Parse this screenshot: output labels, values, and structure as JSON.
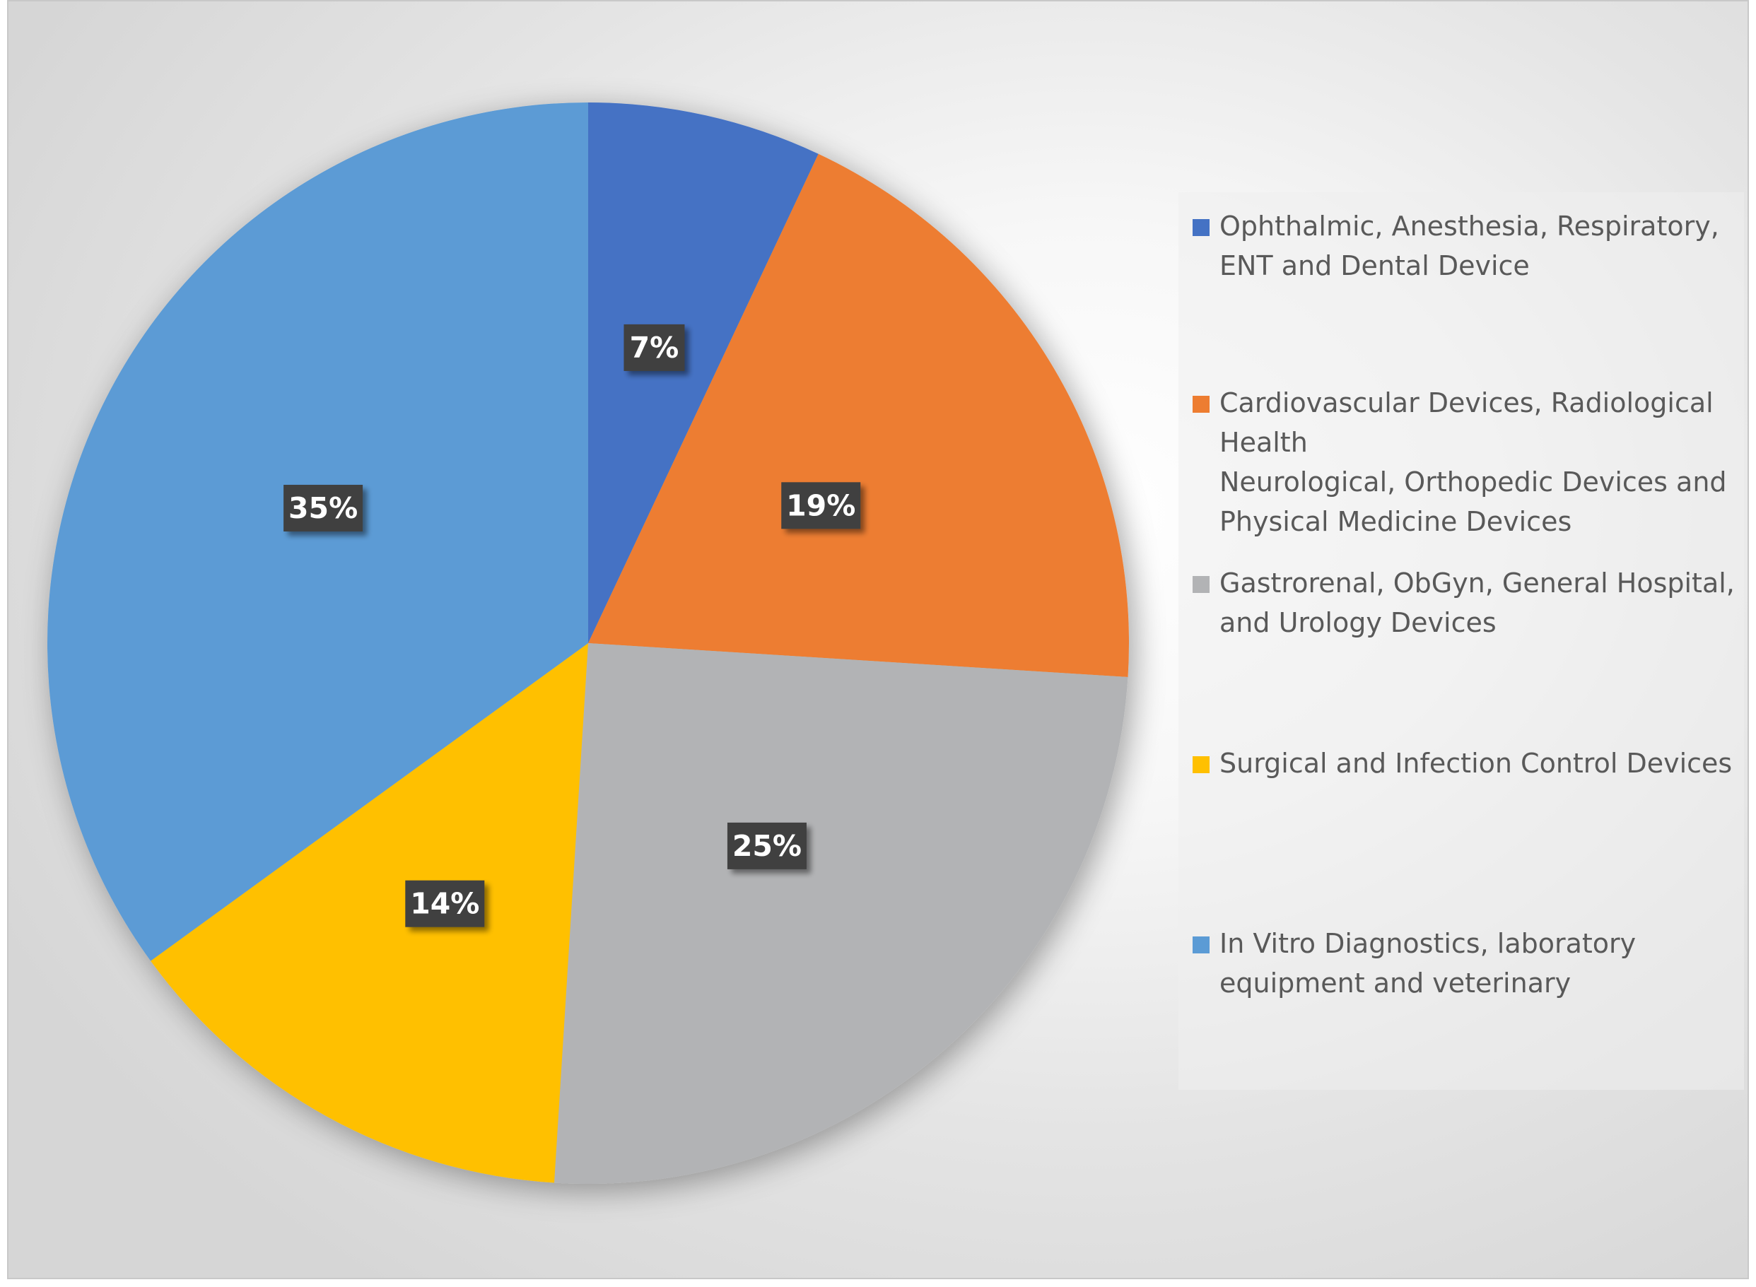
{
  "chart_data": {
    "type": "pie",
    "title": "",
    "slices": [
      {
        "label": "Ophthalmic, Anesthesia, Respiratory, ENT and Dental Device",
        "value": 7,
        "display": "7%",
        "color": "#4472C4"
      },
      {
        "label": "Cardiovascular Devices, Radiological Health\nNeurological, Orthopedic Devices and Physical Medicine Devices",
        "value": 19,
        "display": "19%",
        "color": "#ED7D31"
      },
      {
        "label": "Gastrorenal, ObGyn, General Hospital, and Urology Devices",
        "value": 25,
        "display": "25%",
        "color": "#B2B3B5"
      },
      {
        "label": "Surgical and Infection Control Devices",
        "value": 14,
        "display": "14%",
        "color": "#FFC000"
      },
      {
        "label": "In Vitro Diagnostics, laboratory equipment and veterinary",
        "value": 35,
        "display": "35%",
        "color": "#5B9BD5"
      }
    ],
    "start_angle_deg": 0,
    "direction": "clockwise",
    "legend_position": "right",
    "data_label_background": "#404040"
  }
}
